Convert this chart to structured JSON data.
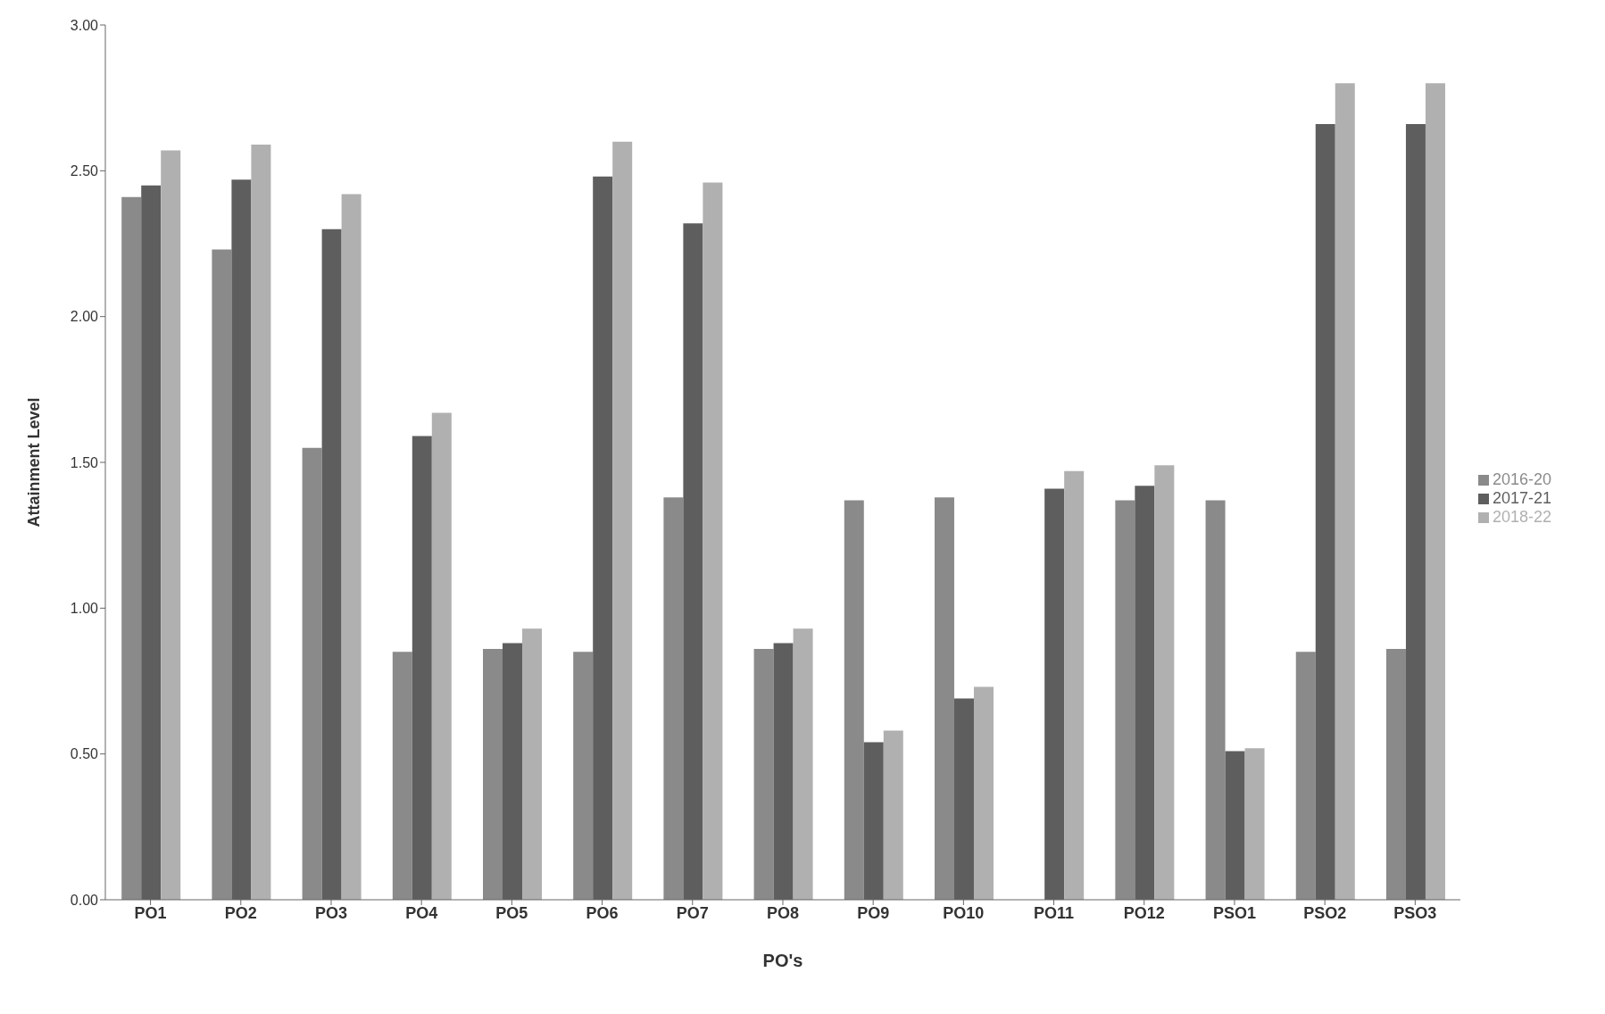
{
  "chart_data": {
    "type": "bar",
    "xlabel": "PO's",
    "ylabel": "Attainment Level",
    "categories": [
      "PO1",
      "PO2",
      "PO3",
      "PO4",
      "PO5",
      "PO6",
      "PO7",
      "PO8",
      "PO9",
      "PO10",
      "PO11",
      "PO12",
      "PSO1",
      "PSO2",
      "PSO3"
    ],
    "series": [
      {
        "name": "2016-20",
        "color": "#8a8a8a",
        "values": [
          2.41,
          2.23,
          1.55,
          0.85,
          0.86,
          0.85,
          1.38,
          0.86,
          1.37,
          1.38,
          null,
          1.37,
          1.37,
          0.85,
          0.86
        ]
      },
      {
        "name": "2017-21",
        "color": "#5e5e5e",
        "values": [
          2.45,
          2.47,
          2.3,
          1.59,
          0.88,
          2.48,
          2.32,
          0.88,
          0.54,
          0.69,
          1.41,
          1.42,
          0.51,
          2.66,
          2.66
        ]
      },
      {
        "name": "2018-22",
        "color": "#b0b0b0",
        "values": [
          2.57,
          2.59,
          2.42,
          1.67,
          0.93,
          2.6,
          2.46,
          0.93,
          0.58,
          0.73,
          1.47,
          1.49,
          0.52,
          2.8,
          2.8
        ]
      }
    ],
    "ylim": [
      0,
      3
    ],
    "yticks": [
      {
        "value": 0,
        "label": "0.00"
      },
      {
        "value": 0.5,
        "label": "0.50"
      },
      {
        "value": 1,
        "label": "1.00"
      },
      {
        "value": 1.5,
        "label": "1.50"
      },
      {
        "value": 2,
        "label": "2.00"
      },
      {
        "value": 2.5,
        "label": "2.50"
      },
      {
        "value": 3,
        "label": "3.00"
      }
    ],
    "grid": false,
    "legend": "right"
  }
}
